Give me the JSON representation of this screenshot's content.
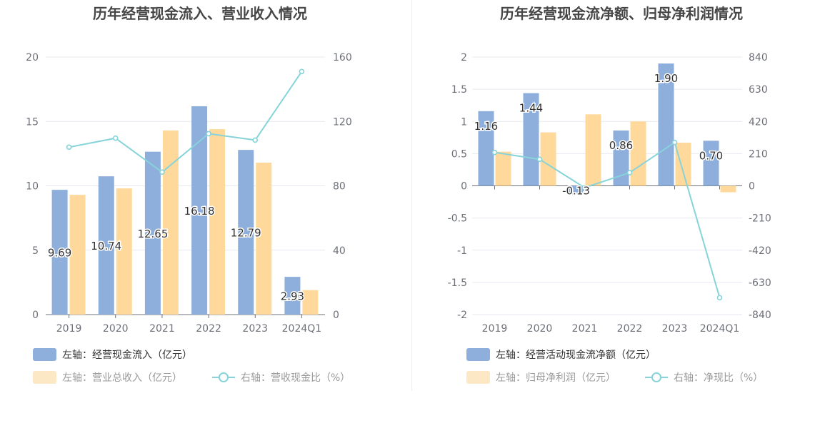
{
  "chart_data": [
    {
      "type": "bar",
      "title": "历年经营现金流入、营业收入情况",
      "categories": [
        "2019",
        "2020",
        "2021",
        "2022",
        "2023",
        "2024Q1"
      ],
      "left_axis": {
        "ticks": [
          "0",
          "5",
          "10",
          "15",
          "20"
        ],
        "ylim": [
          0,
          20
        ]
      },
      "right_axis": {
        "ticks": [
          "0",
          "40",
          "80",
          "120",
          "160"
        ],
        "ylim": [
          0,
          160
        ]
      },
      "series": [
        {
          "name": "左轴：经营现金流入（亿元）",
          "type": "bar",
          "axis": "left",
          "color": "#8eaedc",
          "values": [
            9.69,
            10.74,
            12.65,
            16.18,
            12.79,
            2.93
          ],
          "labels": [
            "9.69",
            "10.74",
            "12.65",
            "16.18",
            "12.79",
            "2.93"
          ]
        },
        {
          "name": "左轴：营业总收入（亿元）",
          "type": "bar",
          "axis": "left",
          "color": "#fed99b",
          "values": [
            9.3,
            9.8,
            14.3,
            14.4,
            11.8,
            1.9
          ]
        },
        {
          "name": "右轴：营收现金比（%）",
          "type": "line",
          "axis": "right",
          "color": "#86d4d9",
          "values": [
            104,
            109.6,
            88.5,
            112.4,
            108.4,
            151
          ]
        }
      ],
      "legend_position": "bottom-left",
      "grid": true
    },
    {
      "type": "bar",
      "title": "历年经营现金流净额、归母净利润情况",
      "categories": [
        "2019",
        "2020",
        "2021",
        "2022",
        "2023",
        "2024Q1"
      ],
      "left_axis": {
        "ticks": [
          "-2",
          "-1.5",
          "-1",
          "-0.5",
          "0",
          "0.5",
          "1",
          "1.5",
          "2"
        ],
        "ylim": [
          -2,
          2
        ]
      },
      "right_axis": {
        "ticks": [
          "-840",
          "-630",
          "-420",
          "-210",
          "0",
          "210",
          "420",
          "630",
          "840"
        ],
        "ylim": [
          -840,
          840
        ]
      },
      "series": [
        {
          "name": "左轴：经营活动现金流净额（亿元）",
          "type": "bar",
          "axis": "left",
          "color": "#8eaedc",
          "values": [
            1.16,
            1.44,
            -0.13,
            0.86,
            1.9,
            0.7
          ],
          "labels": [
            "1.16",
            "1.44",
            "-0.13",
            "0.86",
            "1.90",
            "0.70"
          ]
        },
        {
          "name": "左轴：归母净利润（亿元）",
          "type": "bar",
          "axis": "left",
          "color": "#fed99b",
          "values": [
            0.53,
            0.83,
            1.11,
            1.0,
            0.67,
            -0.1
          ]
        },
        {
          "name": "右轴：净现比（%）",
          "type": "line",
          "axis": "right",
          "color": "#86d4d9",
          "values": [
            218,
            173,
            -12,
            86,
            283,
            -730
          ]
        }
      ],
      "legend_position": "bottom-left",
      "grid": true
    }
  ]
}
